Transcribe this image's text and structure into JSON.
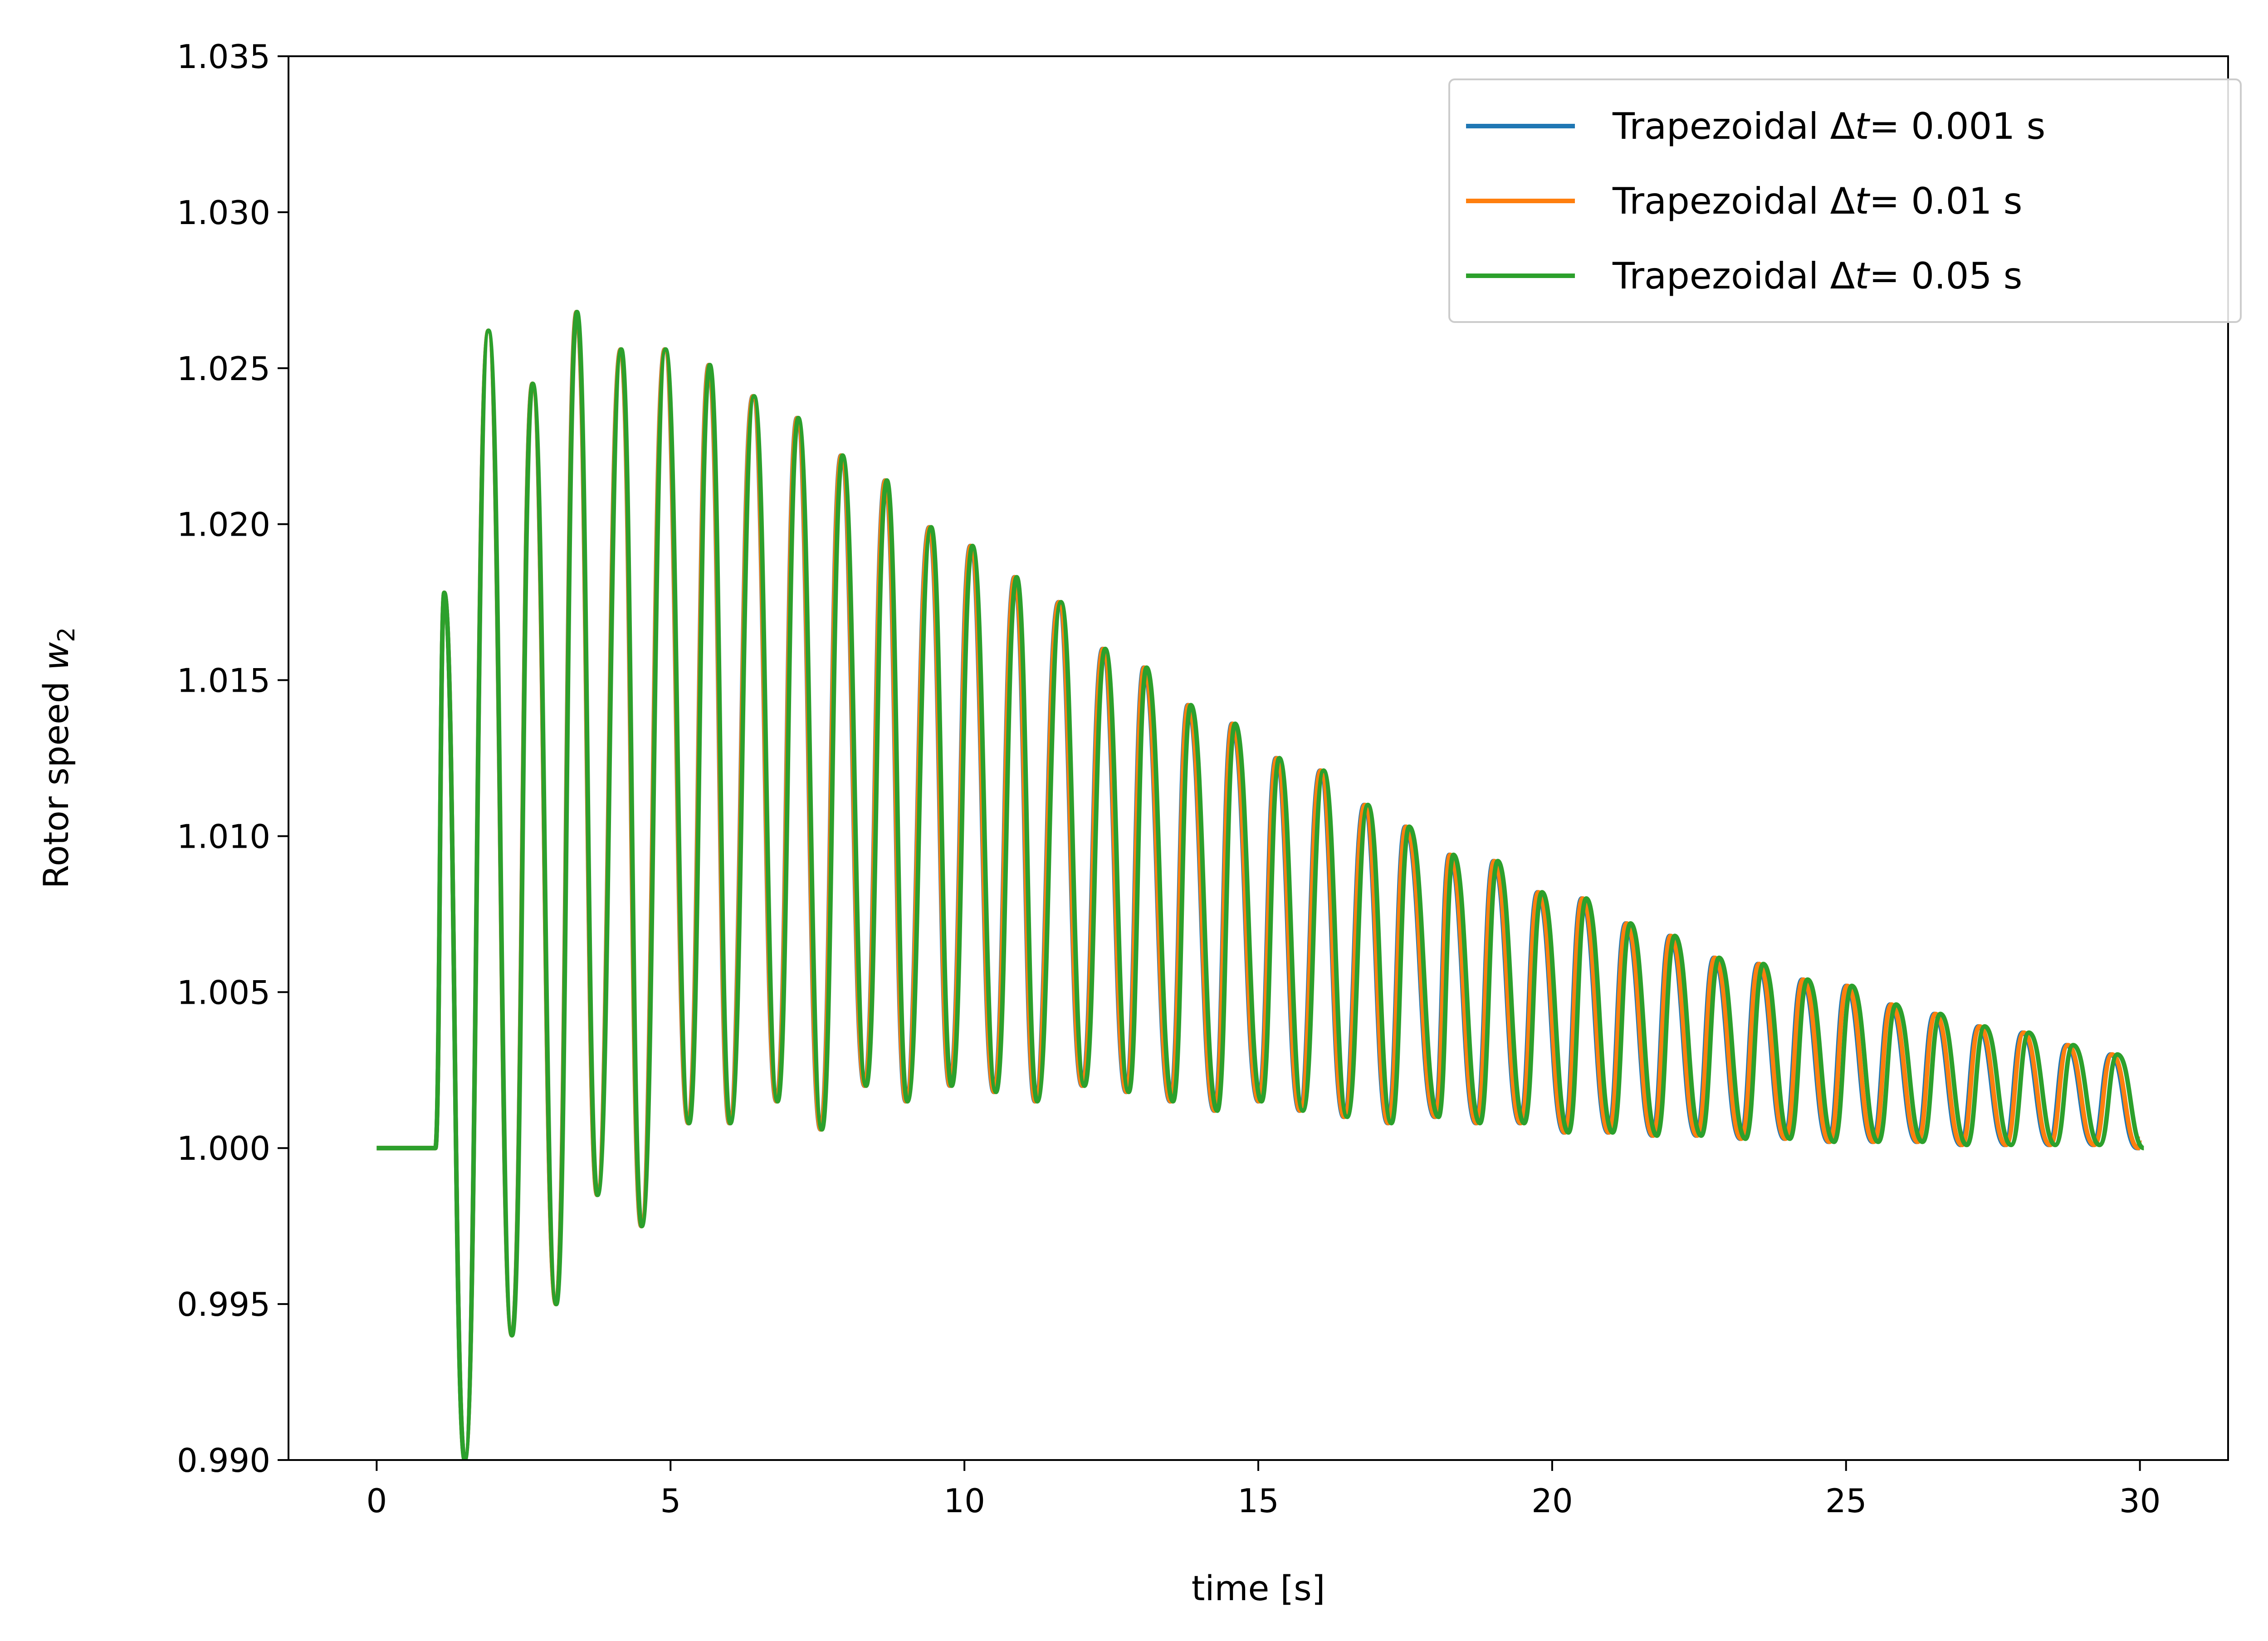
{
  "chart_data": {
    "type": "line",
    "title": "",
    "xlabel": "time [s]",
    "ylabel_prefix": "Rotor speed ",
    "ylabel_var": "w",
    "ylabel_sub": "2",
    "xlim": [
      -1.5,
      31.5
    ],
    "ylim": [
      0.99,
      1.035
    ],
    "xticks": [
      0,
      5,
      10,
      15,
      20,
      25,
      30
    ],
    "xtick_labels": [
      "0",
      "5",
      "10",
      "15",
      "20",
      "25",
      "30"
    ],
    "yticks": [
      0.99,
      0.995,
      1.0,
      1.005,
      1.01,
      1.015,
      1.02,
      1.025,
      1.03,
      1.035
    ],
    "ytick_labels": [
      "0.990",
      "0.995",
      "1.000",
      "1.005",
      "1.010",
      "1.015",
      "1.020",
      "1.025",
      "1.030",
      "1.035"
    ],
    "grid": false,
    "legend_position": "top-right",
    "signal": {
      "steady_value": 1.0,
      "event_time": 1.0,
      "end_time": 30.0,
      "period": 0.745,
      "first_peak_time": 1.15,
      "peaks": [
        [
          1.15,
          1.0178
        ],
        [
          1.9,
          1.0262
        ],
        [
          2.65,
          1.0245
        ],
        [
          3.4,
          1.0268
        ],
        [
          4.15,
          1.0256
        ],
        [
          4.9,
          1.0256
        ],
        [
          5.65,
          1.0251
        ],
        [
          6.4,
          1.0241
        ],
        [
          7.15,
          1.0234
        ],
        [
          7.9,
          1.0222
        ],
        [
          8.65,
          1.0214
        ],
        [
          9.4,
          1.0199
        ],
        [
          10.1,
          1.0193
        ],
        [
          10.85,
          1.0183
        ],
        [
          11.6,
          1.0175
        ],
        [
          12.35,
          1.016
        ],
        [
          13.05,
          1.0154
        ],
        [
          13.8,
          1.0142
        ],
        [
          14.55,
          1.0136
        ],
        [
          15.3,
          1.0125
        ],
        [
          16.05,
          1.0121
        ],
        [
          16.8,
          1.011
        ],
        [
          17.5,
          1.0103
        ],
        [
          18.25,
          1.0094
        ],
        [
          19.0,
          1.0092
        ],
        [
          19.75,
          1.0082
        ],
        [
          20.5,
          1.008
        ],
        [
          21.25,
          1.0072
        ],
        [
          22.0,
          1.0068
        ],
        [
          22.75,
          1.0061
        ],
        [
          23.5,
          1.0059
        ],
        [
          24.25,
          1.0054
        ],
        [
          25.0,
          1.0052
        ],
        [
          25.75,
          1.0046
        ],
        [
          26.5,
          1.0043
        ],
        [
          27.25,
          1.0039
        ],
        [
          28.0,
          1.0037
        ],
        [
          28.75,
          1.0033
        ],
        [
          29.5,
          1.003
        ]
      ],
      "troughs": [
        [
          1.5,
          0.99
        ],
        [
          2.3,
          0.994
        ],
        [
          3.05,
          0.995
        ],
        [
          3.75,
          0.9985
        ],
        [
          4.5,
          0.9975
        ],
        [
          5.3,
          1.0008
        ],
        [
          6.0,
          1.0008
        ],
        [
          6.8,
          1.0015
        ],
        [
          7.55,
          1.0006
        ],
        [
          8.3,
          1.002
        ],
        [
          9.0,
          1.0015
        ],
        [
          9.75,
          1.002
        ],
        [
          10.5,
          1.0018
        ],
        [
          11.2,
          1.0015
        ],
        [
          12.0,
          1.002
        ],
        [
          12.75,
          1.0018
        ],
        [
          13.5,
          1.0015
        ],
        [
          14.25,
          1.0012
        ],
        [
          15.0,
          1.0015
        ],
        [
          15.7,
          1.0012
        ],
        [
          16.45,
          1.001
        ],
        [
          17.2,
          1.0008
        ],
        [
          18.0,
          1.001
        ],
        [
          18.7,
          1.0008
        ],
        [
          19.45,
          1.0008
        ],
        [
          20.2,
          1.0005
        ],
        [
          20.95,
          1.0005
        ],
        [
          21.7,
          1.0004
        ],
        [
          22.45,
          1.0004
        ],
        [
          23.2,
          1.0003
        ],
        [
          23.95,
          1.0003
        ],
        [
          24.7,
          1.0002
        ],
        [
          25.45,
          1.0002
        ],
        [
          26.2,
          1.0002
        ],
        [
          26.95,
          1.0001
        ],
        [
          27.7,
          1.0001
        ],
        [
          28.45,
          1.0001
        ],
        [
          29.2,
          1.0001
        ],
        [
          29.95,
          1.0
        ]
      ]
    },
    "series": [
      {
        "name": "Trapezoidal Δt= 0.001 s",
        "label_pre": "Trapezoidal Δ",
        "label_var": "t",
        "label_post": "= 0.001 s",
        "color": "#1f77b4",
        "amp_scale": 1.0,
        "phase_lag": 0.0,
        "end_value": 1.0
      },
      {
        "name": "Trapezoidal Δt= 0.01 s",
        "label_pre": "Trapezoidal Δ",
        "label_var": "t",
        "label_post": "= 0.01 s",
        "color": "#ff7f0e",
        "amp_scale": 1.0,
        "phase_lag": 0.025,
        "end_value": 1.0003
      },
      {
        "name": "Trapezoidal Δt= 0.05 s",
        "label_pre": "Trapezoidal Δ",
        "label_var": "t",
        "label_post": "= 0.05 s",
        "color": "#2ca02c",
        "amp_scale": 1.0,
        "phase_lag": 0.12,
        "end_value": 1.0018
      }
    ]
  }
}
